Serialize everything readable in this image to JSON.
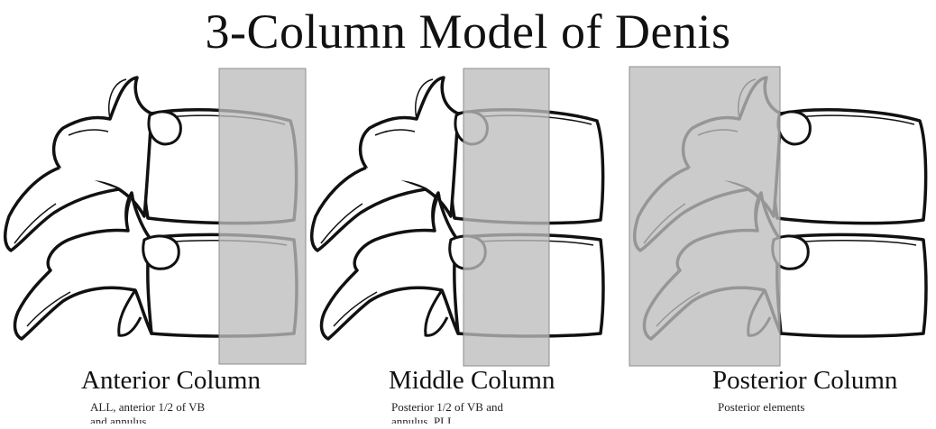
{
  "title": "3-Column Model of Denis",
  "columns": [
    {
      "label": "Anterior Column",
      "description_line1": "ALL, anterior 1/2 of VB",
      "description_line2": "and annulus",
      "highlight_color": "#bdbdbd"
    },
    {
      "label": "Middle Column",
      "description_line1": "Posterior 1/2 of VB and",
      "description_line2": "annulus, PLL",
      "highlight_color": "#bdbdbd"
    },
    {
      "label": "Posterior Column",
      "description_line1": "Posterior elements",
      "description_line2": "",
      "highlight_color": "#bdbdbd"
    }
  ]
}
